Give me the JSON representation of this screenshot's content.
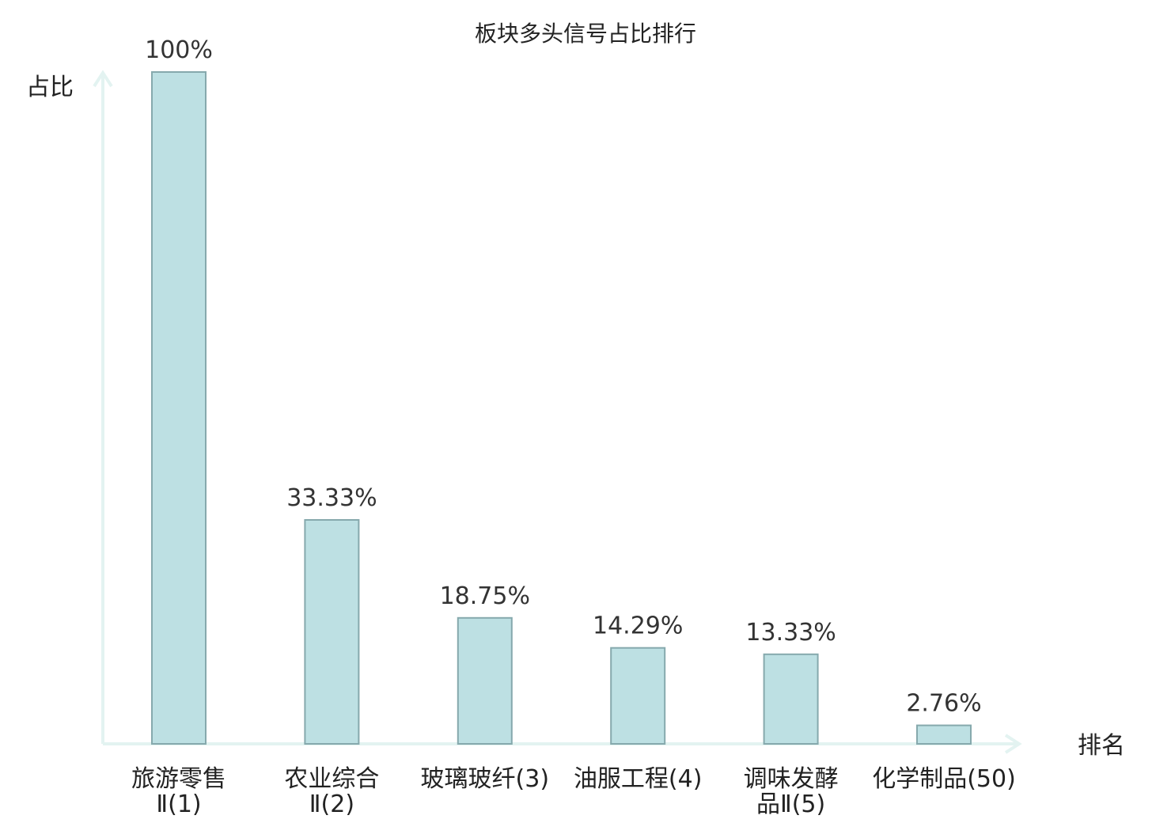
{
  "chart_data": {
    "type": "bar",
    "title": "板块多头信号占比排行",
    "ylabel": "占比",
    "xlabel": "排名",
    "ylim": [
      0,
      100
    ],
    "grid": false,
    "categories": [
      [
        "旅游零售",
        "Ⅱ(1)"
      ],
      [
        "农业综合",
        "Ⅱ(2)"
      ],
      [
        "玻璃玻纤(3)"
      ],
      [
        "油服工程(4)"
      ],
      [
        "调味发酵",
        "品Ⅱ(5)"
      ],
      [
        "化学制品(50)"
      ]
    ],
    "values": [
      100,
      33.33,
      18.75,
      14.29,
      13.33,
      2.76
    ],
    "value_labels": [
      "100%",
      "33.33%",
      "18.75%",
      "14.29%",
      "13.33%",
      "2.76%"
    ],
    "highlight_index": 5,
    "colors": {
      "bar_fill": "#bde0e3",
      "bar_stroke": "#86a9ad",
      "axis": "#e3f3f1",
      "highlight_label": "#e00000",
      "text": "#222222"
    }
  }
}
